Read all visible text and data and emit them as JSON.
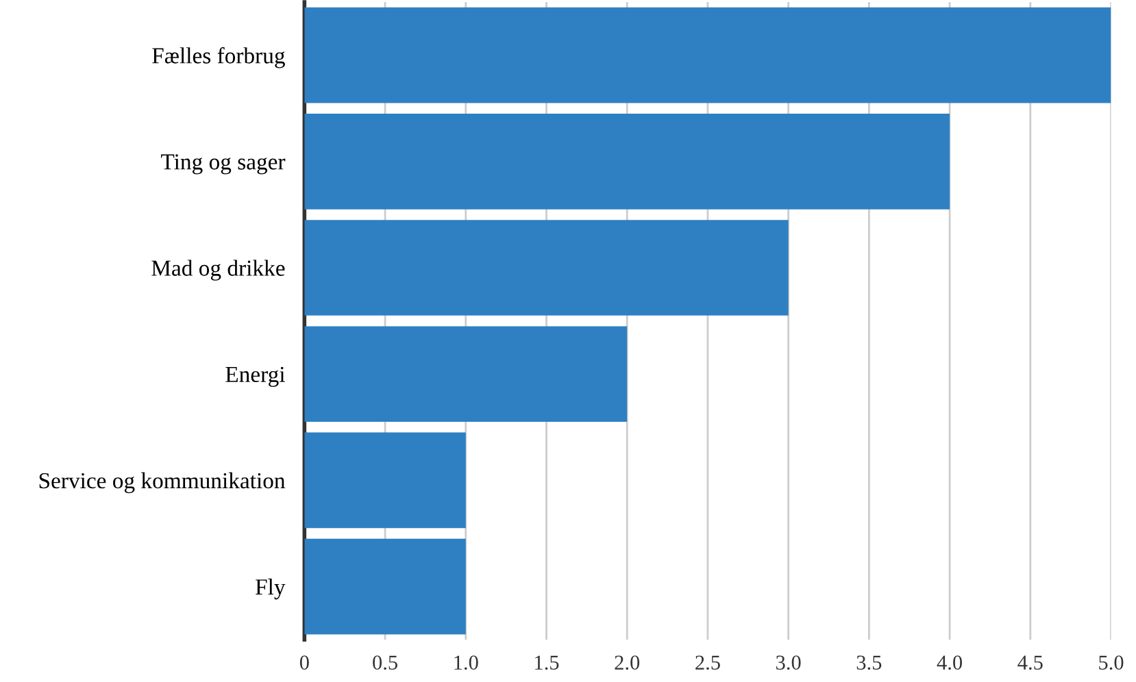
{
  "chart_data": {
    "type": "bar",
    "orientation": "horizontal",
    "categories": [
      "Fælles forbrug",
      "Ting og sager",
      "Mad og drikke",
      "Energi",
      "Service og kommunikation",
      "Fly"
    ],
    "values": [
      5.0,
      4.0,
      3.0,
      2.0,
      1.0,
      1.0
    ],
    "color": "#2f80c2",
    "xlim": [
      0,
      5.0
    ],
    "xticks": [
      0,
      0.5,
      {
        "value": 1,
        "label": "1.0"
      },
      1.5,
      {
        "value": 2,
        "label": "2.0"
      },
      2.5,
      {
        "value": 3,
        "label": "3.0"
      },
      3.5,
      {
        "value": 4,
        "label": "4.0"
      },
      4.5,
      {
        "value": 5,
        "label": "5.0"
      }
    ],
    "grid": "x"
  }
}
